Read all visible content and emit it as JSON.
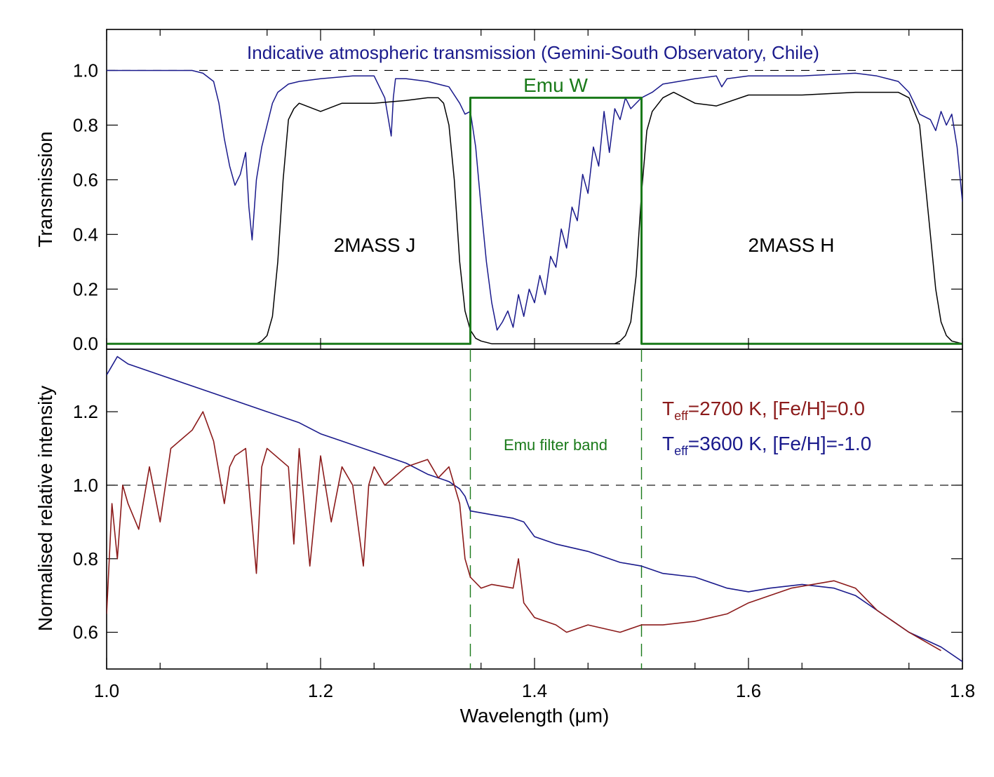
{
  "chart_data": [
    {
      "type": "line",
      "title": "Indicative atmospheric transmission (Gemini-South Observatory, Chile)",
      "xlabel": "",
      "ylabel": "Transmission",
      "xlim": [
        1.0,
        1.8
      ],
      "ylim": [
        -0.02,
        1.15
      ],
      "yticks": [
        "0.0",
        "0.2",
        "0.4",
        "0.6",
        "0.8",
        "1.0"
      ],
      "reference_line": 1.0,
      "colors": {
        "atmosphere": "#1a1a8c",
        "twomass": "#000000",
        "emu": "#1a7a1a"
      },
      "annotations": {
        "j_band": "2MASS J",
        "h_band": "2MASS H",
        "emu_w": "Emu W"
      },
      "series": [
        {
          "key": "atmosphere",
          "color": "#1a1a8c",
          "x": [
            1.0,
            1.05,
            1.08,
            1.09,
            1.1,
            1.105,
            1.11,
            1.115,
            1.12,
            1.125,
            1.13,
            1.133,
            1.136,
            1.14,
            1.145,
            1.15,
            1.155,
            1.16,
            1.17,
            1.18,
            1.2,
            1.23,
            1.25,
            1.26,
            1.266,
            1.268,
            1.27,
            1.28,
            1.3,
            1.32,
            1.33,
            1.335,
            1.34,
            1.345,
            1.35,
            1.355,
            1.36,
            1.365,
            1.37,
            1.375,
            1.38,
            1.385,
            1.39,
            1.395,
            1.4,
            1.405,
            1.41,
            1.415,
            1.42,
            1.425,
            1.43,
            1.435,
            1.44,
            1.445,
            1.45,
            1.455,
            1.46,
            1.465,
            1.47,
            1.475,
            1.48,
            1.485,
            1.49,
            1.5,
            1.51,
            1.52,
            1.55,
            1.57,
            1.575,
            1.58,
            1.6,
            1.65,
            1.7,
            1.72,
            1.74,
            1.75,
            1.76,
            1.77,
            1.775,
            1.78,
            1.785,
            1.79,
            1.795,
            1.8
          ],
          "y": [
            1.0,
            1.0,
            1.0,
            0.99,
            0.96,
            0.88,
            0.75,
            0.65,
            0.58,
            0.62,
            0.7,
            0.5,
            0.38,
            0.6,
            0.72,
            0.8,
            0.88,
            0.92,
            0.95,
            0.96,
            0.97,
            0.98,
            0.98,
            0.9,
            0.76,
            0.9,
            0.97,
            0.97,
            0.96,
            0.94,
            0.88,
            0.84,
            0.85,
            0.72,
            0.5,
            0.3,
            0.15,
            0.05,
            0.08,
            0.12,
            0.06,
            0.18,
            0.1,
            0.2,
            0.15,
            0.25,
            0.18,
            0.32,
            0.28,
            0.42,
            0.35,
            0.5,
            0.45,
            0.62,
            0.55,
            0.72,
            0.65,
            0.85,
            0.7,
            0.86,
            0.82,
            0.9,
            0.86,
            0.9,
            0.92,
            0.95,
            0.97,
            0.98,
            0.94,
            0.97,
            0.98,
            0.98,
            0.99,
            0.98,
            0.96,
            0.92,
            0.84,
            0.82,
            0.78,
            0.85,
            0.8,
            0.84,
            0.72,
            0.52
          ]
        },
        {
          "key": "twomass_j",
          "color": "#000000",
          "x": [
            1.0,
            1.13,
            1.14,
            1.145,
            1.15,
            1.155,
            1.16,
            1.165,
            1.17,
            1.175,
            1.18,
            1.2,
            1.22,
            1.25,
            1.28,
            1.3,
            1.31,
            1.315,
            1.32,
            1.325,
            1.33,
            1.335,
            1.34,
            1.345,
            1.35,
            1.36,
            1.4,
            1.45,
            1.48
          ],
          "y": [
            0.0,
            0.0,
            0.0,
            0.01,
            0.03,
            0.1,
            0.3,
            0.6,
            0.82,
            0.86,
            0.88,
            0.85,
            0.88,
            0.88,
            0.89,
            0.9,
            0.9,
            0.88,
            0.8,
            0.6,
            0.3,
            0.12,
            0.05,
            0.02,
            0.01,
            0.0,
            0.0,
            0.0,
            0.0
          ]
        },
        {
          "key": "twomass_h",
          "color": "#000000",
          "x": [
            1.45,
            1.475,
            1.48,
            1.485,
            1.49,
            1.495,
            1.5,
            1.505,
            1.51,
            1.52,
            1.53,
            1.55,
            1.57,
            1.6,
            1.65,
            1.7,
            1.74,
            1.75,
            1.76,
            1.765,
            1.77,
            1.775,
            1.78,
            1.785,
            1.79,
            1.8
          ],
          "y": [
            0.0,
            0.0,
            0.01,
            0.03,
            0.08,
            0.25,
            0.55,
            0.78,
            0.85,
            0.9,
            0.92,
            0.88,
            0.87,
            0.91,
            0.91,
            0.92,
            0.92,
            0.9,
            0.8,
            0.6,
            0.4,
            0.2,
            0.08,
            0.03,
            0.01,
            0.0
          ]
        },
        {
          "key": "emu_w",
          "color": "#1a7a1a",
          "x": [
            1.0,
            1.34,
            1.34,
            1.5,
            1.5,
            1.8
          ],
          "y": [
            0.0,
            0.0,
            0.9,
            0.9,
            0.0,
            0.0
          ]
        }
      ]
    },
    {
      "type": "line",
      "title": "",
      "xlabel": "Wavelength (μm)",
      "ylabel": "Normalised relative intensity",
      "xlim": [
        1.0,
        1.8
      ],
      "ylim": [
        0.5,
        1.37
      ],
      "xticks": [
        "1.0",
        "1.2",
        "1.4",
        "1.6",
        "1.8"
      ],
      "yticks": [
        "0.6",
        "0.8",
        "1.0",
        "1.2"
      ],
      "reference_line": 1.0,
      "band_edges": [
        1.34,
        1.5
      ],
      "band_label": "Emu filter band",
      "legend": {
        "placement": "right",
        "entries": [
          {
            "key": "cool",
            "main": "T",
            "sub": "eff",
            "rest": "=2700 K, [Fe/H]=0.0",
            "color": "#8b1a1a"
          },
          {
            "key": "warm",
            "main": "T",
            "sub": "eff",
            "rest": "=3600 K, [Fe/H]=-1.0",
            "color": "#1a1a8c"
          }
        ]
      },
      "series": [
        {
          "key": "warm",
          "color": "#1a1a8c",
          "x": [
            1.0,
            1.01,
            1.02,
            1.03,
            1.05,
            1.07,
            1.1,
            1.13,
            1.15,
            1.18,
            1.2,
            1.22,
            1.25,
            1.28,
            1.3,
            1.32,
            1.33,
            1.335,
            1.34,
            1.36,
            1.38,
            1.39,
            1.4,
            1.42,
            1.45,
            1.48,
            1.5,
            1.52,
            1.55,
            1.58,
            1.6,
            1.62,
            1.65,
            1.68,
            1.7,
            1.72,
            1.75,
            1.78,
            1.8
          ],
          "y": [
            1.3,
            1.35,
            1.33,
            1.32,
            1.3,
            1.28,
            1.25,
            1.22,
            1.2,
            1.17,
            1.14,
            1.12,
            1.09,
            1.06,
            1.03,
            1.01,
            0.99,
            0.97,
            0.93,
            0.92,
            0.91,
            0.9,
            0.86,
            0.84,
            0.82,
            0.79,
            0.78,
            0.76,
            0.75,
            0.72,
            0.71,
            0.72,
            0.73,
            0.72,
            0.7,
            0.66,
            0.6,
            0.56,
            0.52
          ]
        },
        {
          "key": "cool",
          "color": "#8b1a1a",
          "x": [
            1.0,
            1.005,
            1.01,
            1.015,
            1.02,
            1.03,
            1.04,
            1.05,
            1.06,
            1.08,
            1.09,
            1.1,
            1.11,
            1.115,
            1.12,
            1.13,
            1.14,
            1.145,
            1.15,
            1.17,
            1.175,
            1.18,
            1.19,
            1.2,
            1.21,
            1.22,
            1.23,
            1.24,
            1.245,
            1.25,
            1.26,
            1.28,
            1.3,
            1.31,
            1.32,
            1.33,
            1.335,
            1.34,
            1.35,
            1.36,
            1.38,
            1.385,
            1.39,
            1.4,
            1.42,
            1.43,
            1.45,
            1.48,
            1.5,
            1.52,
            1.55,
            1.58,
            1.6,
            1.62,
            1.64,
            1.66,
            1.68,
            1.7,
            1.72,
            1.75,
            1.78
          ],
          "y": [
            0.65,
            0.95,
            0.8,
            1.0,
            0.95,
            0.88,
            1.05,
            0.9,
            1.1,
            1.15,
            1.2,
            1.12,
            0.95,
            1.05,
            1.08,
            1.1,
            0.76,
            1.05,
            1.1,
            1.05,
            0.84,
            1.1,
            0.78,
            1.08,
            0.9,
            1.05,
            1.0,
            0.78,
            1.0,
            1.05,
            1.0,
            1.05,
            1.07,
            1.02,
            1.05,
            0.95,
            0.8,
            0.75,
            0.72,
            0.73,
            0.72,
            0.8,
            0.68,
            0.64,
            0.62,
            0.6,
            0.62,
            0.6,
            0.62,
            0.62,
            0.63,
            0.65,
            0.68,
            0.7,
            0.72,
            0.73,
            0.74,
            0.72,
            0.66,
            0.6,
            0.55
          ]
        }
      ]
    }
  ]
}
